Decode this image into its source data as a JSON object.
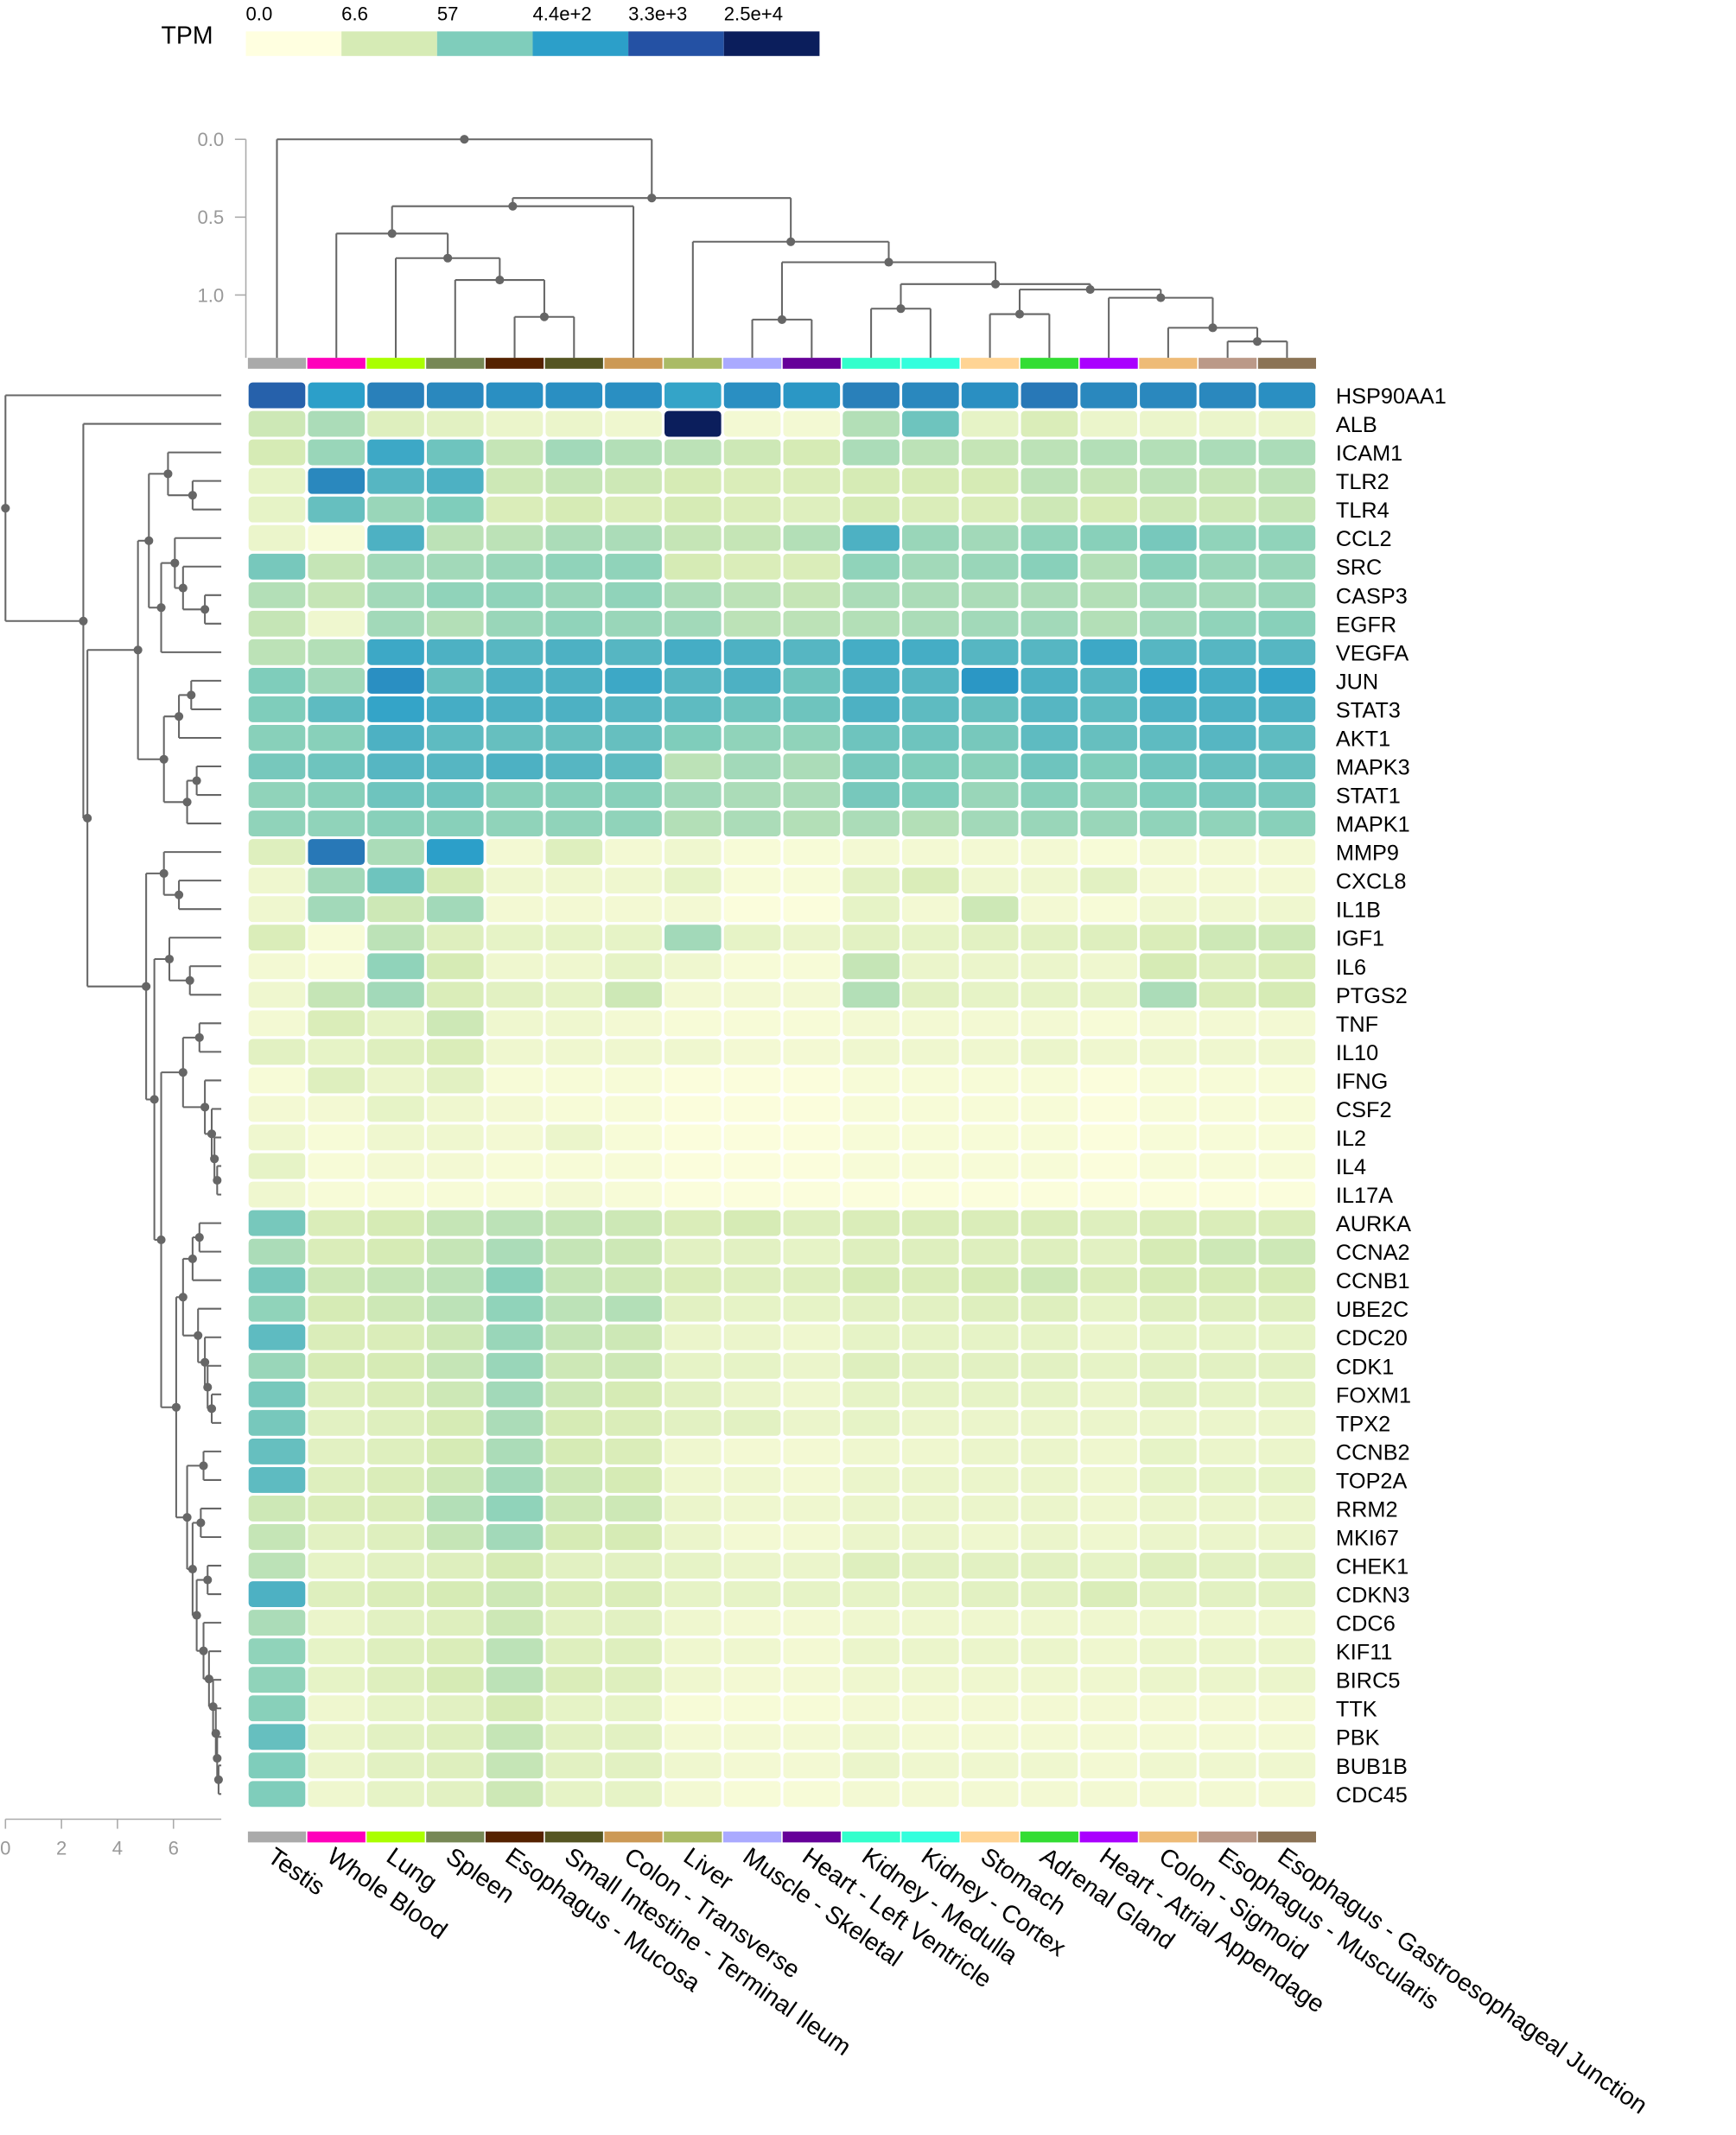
{
  "chart_data": {
    "type": "heatmap",
    "title": "",
    "legend": {
      "title": "TPM",
      "ticks": [
        "0.0",
        "6.6",
        "57",
        "4.4e+2",
        "3.3e+3",
        "2.5e+4"
      ],
      "colors": [
        "#ffffe0",
        "#d6ebb5",
        "#7fcdbb",
        "#2c9fc9",
        "#2451a4",
        "#0b1e5c"
      ]
    },
    "top_axis": {
      "ticks": [
        "0.0",
        "0.5",
        "1.0"
      ]
    },
    "left_axis": {
      "ticks": [
        "0",
        "2",
        "4",
        "6"
      ]
    },
    "tissues": [
      "Testis",
      "Whole Blood",
      "Lung",
      "Spleen",
      "Esophagus - Mucosa",
      "Small Intestine - Terminal Ileum",
      "Colon - Transverse",
      "Liver",
      "Muscle - Skeletal",
      "Heart - Left Ventricle",
      "Kidney - Medulla",
      "Kidney - Cortex",
      "Stomach",
      "Adrenal Gland",
      "Heart - Atrial Appendage",
      "Colon - Sigmoid",
      "Esophagus - Muscularis",
      "Esophagus - Gastroesophageal Junction"
    ],
    "tissue_colors": [
      "#aaaaaa",
      "#ff00bb",
      "#aaff00",
      "#778855",
      "#552200",
      "#555522",
      "#cc9955",
      "#aabb66",
      "#aaaaff",
      "#660099",
      "#33ffcc",
      "#33ffdd",
      "#ffd494",
      "#33dd33",
      "#aa00ff",
      "#eebb77",
      "#bb9988",
      "#8b7355"
    ],
    "genes": [
      "HSP90AA1",
      "ALB",
      "ICAM1",
      "TLR2",
      "TLR4",
      "CCL2",
      "SRC",
      "CASP3",
      "EGFR",
      "VEGFA",
      "JUN",
      "STAT3",
      "AKT1",
      "MAPK3",
      "STAT1",
      "MAPK1",
      "MMP9",
      "CXCL8",
      "IL1B",
      "IGF1",
      "IL6",
      "PTGS2",
      "TNF",
      "IL10",
      "IFNG",
      "CSF2",
      "IL2",
      "IL4",
      "IL17A",
      "AURKA",
      "CCNA2",
      "CCNB1",
      "UBE2C",
      "CDC20",
      "CDK1",
      "FOXM1",
      "TPX2",
      "CCNB2",
      "TOP2A",
      "RRM2",
      "MKI67",
      "CHEK1",
      "CDKN3",
      "CDC6",
      "KIF11",
      "BIRC5",
      "TTK",
      "PBK",
      "BUB1B",
      "CDC45"
    ],
    "values": [
      [
        3.8,
        3.0,
        3.4,
        3.3,
        3.2,
        3.2,
        3.2,
        2.9,
        3.2,
        3.1,
        3.4,
        3.3,
        3.2,
        3.5,
        3.3,
        3.3,
        3.3,
        3.2
      ],
      [
        1.1,
        1.5,
        0.8,
        0.7,
        0.5,
        0.5,
        0.4,
        5.0,
        0.3,
        0.3,
        1.4,
        2.2,
        0.6,
        0.9,
        0.5,
        0.5,
        0.5,
        0.5
      ],
      [
        1.0,
        1.7,
        2.8,
        2.2,
        1.2,
        1.6,
        1.4,
        1.3,
        1.1,
        1.0,
        1.5,
        1.3,
        1.2,
        1.3,
        1.4,
        1.4,
        1.5,
        1.5
      ],
      [
        0.6,
        3.3,
        2.5,
        2.6,
        1.1,
        1.2,
        1.1,
        1.0,
        0.9,
        0.9,
        1.0,
        1.0,
        1.0,
        1.3,
        1.2,
        1.3,
        1.2,
        1.3
      ],
      [
        0.6,
        2.3,
        1.7,
        2.0,
        0.9,
        1.0,
        0.9,
        1.0,
        0.9,
        0.8,
        1.0,
        0.9,
        0.9,
        1.1,
        1.0,
        1.1,
        1.1,
        1.2
      ],
      [
        0.5,
        0.2,
        2.6,
        1.3,
        1.3,
        1.5,
        1.5,
        1.2,
        1.2,
        1.4,
        2.6,
        1.7,
        1.6,
        1.8,
        1.9,
        2.1,
        1.8,
        1.8
      ],
      [
        2.1,
        1.2,
        1.6,
        1.6,
        1.7,
        1.8,
        1.8,
        1.0,
        0.9,
        0.9,
        1.8,
        1.6,
        1.7,
        1.9,
        1.4,
        1.9,
        1.7,
        1.7
      ],
      [
        1.4,
        1.2,
        1.6,
        1.8,
        1.8,
        1.7,
        1.8,
        1.5,
        1.3,
        1.2,
        1.5,
        1.5,
        1.5,
        1.5,
        1.4,
        1.6,
        1.6,
        1.7
      ],
      [
        1.2,
        0.4,
        1.6,
        1.4,
        1.7,
        1.8,
        1.7,
        1.6,
        1.3,
        1.3,
        1.4,
        1.5,
        1.6,
        1.6,
        1.4,
        1.6,
        1.8,
        1.9
      ],
      [
        1.3,
        1.4,
        2.8,
        2.6,
        2.5,
        2.6,
        2.5,
        2.7,
        2.6,
        2.5,
        2.7,
        2.7,
        2.5,
        2.5,
        2.8,
        2.5,
        2.5,
        2.5
      ],
      [
        2.0,
        1.6,
        3.2,
        2.3,
        2.6,
        2.6,
        2.8,
        2.5,
        2.6,
        2.2,
        2.6,
        2.5,
        3.1,
        2.6,
        2.5,
        2.9,
        2.7,
        2.9
      ],
      [
        2.0,
        2.4,
        2.9,
        2.7,
        2.6,
        2.6,
        2.5,
        2.4,
        2.2,
        2.2,
        2.6,
        2.4,
        2.3,
        2.5,
        2.4,
        2.6,
        2.6,
        2.6
      ],
      [
        1.9,
        1.9,
        2.6,
        2.4,
        2.3,
        2.3,
        2.3,
        2.0,
        1.8,
        1.8,
        2.2,
        2.2,
        2.1,
        2.4,
        2.3,
        2.4,
        2.5,
        2.4
      ],
      [
        2.1,
        2.2,
        2.5,
        2.5,
        2.6,
        2.5,
        2.4,
        1.3,
        1.6,
        1.5,
        2.1,
        2.0,
        1.9,
        2.2,
        2.0,
        2.2,
        2.3,
        2.3
      ],
      [
        1.8,
        1.9,
        2.2,
        2.2,
        1.9,
        1.9,
        1.9,
        1.6,
        1.5,
        1.5,
        2.1,
        2.0,
        1.7,
        1.9,
        1.8,
        2.0,
        2.1,
        2.1
      ],
      [
        1.8,
        1.8,
        1.9,
        1.9,
        1.8,
        1.8,
        1.8,
        1.4,
        1.5,
        1.4,
        1.5,
        1.4,
        1.6,
        1.7,
        1.7,
        1.8,
        1.8,
        1.9
      ],
      [
        0.8,
        3.5,
        1.5,
        3.0,
        0.3,
        0.8,
        0.3,
        0.4,
        0.2,
        0.2,
        0.3,
        0.3,
        0.3,
        0.3,
        0.2,
        0.3,
        0.3,
        0.3
      ],
      [
        0.4,
        1.6,
        2.2,
        1.0,
        0.4,
        0.4,
        0.4,
        0.6,
        0.2,
        0.2,
        0.7,
        0.9,
        0.4,
        0.4,
        0.7,
        0.3,
        0.3,
        0.3
      ],
      [
        0.4,
        1.6,
        1.1,
        1.6,
        0.3,
        0.3,
        0.3,
        0.3,
        0.1,
        0.1,
        0.6,
        0.3,
        1.1,
        0.3,
        0.2,
        0.4,
        0.4,
        0.4
      ],
      [
        0.9,
        0.2,
        1.3,
        0.8,
        0.6,
        0.6,
        0.6,
        1.6,
        0.6,
        0.5,
        0.7,
        0.6,
        0.7,
        0.7,
        0.8,
        0.9,
        1.1,
        1.1
      ],
      [
        0.3,
        0.2,
        1.8,
        1.0,
        0.4,
        0.4,
        0.6,
        0.4,
        0.2,
        0.2,
        1.2,
        0.5,
        0.5,
        0.5,
        0.4,
        1.0,
        0.8,
        0.9
      ],
      [
        0.4,
        1.2,
        1.6,
        0.9,
        0.7,
        0.6,
        1.1,
        0.3,
        0.3,
        0.3,
        1.4,
        0.7,
        0.6,
        0.6,
        0.6,
        1.5,
        0.9,
        1.0
      ],
      [
        0.3,
        0.9,
        0.6,
        1.1,
        0.4,
        0.4,
        0.3,
        0.2,
        0.2,
        0.2,
        0.3,
        0.3,
        0.3,
        0.3,
        0.2,
        0.3,
        0.3,
        0.3
      ],
      [
        0.7,
        0.6,
        0.8,
        0.9,
        0.4,
        0.4,
        0.4,
        0.4,
        0.3,
        0.3,
        0.4,
        0.4,
        0.4,
        0.5,
        0.4,
        0.4,
        0.4,
        0.4
      ],
      [
        0.2,
        0.8,
        0.5,
        0.7,
        0.2,
        0.2,
        0.2,
        0.1,
        0.1,
        0.1,
        0.2,
        0.2,
        0.2,
        0.2,
        0.1,
        0.2,
        0.2,
        0.2
      ],
      [
        0.3,
        0.3,
        0.6,
        0.4,
        0.3,
        0.2,
        0.2,
        0.1,
        0.1,
        0.1,
        0.2,
        0.2,
        0.2,
        0.2,
        0.1,
        0.2,
        0.2,
        0.2
      ],
      [
        0.4,
        0.2,
        0.4,
        0.4,
        0.3,
        0.5,
        0.2,
        0.1,
        0.1,
        0.1,
        0.2,
        0.2,
        0.2,
        0.2,
        0.1,
        0.2,
        0.2,
        0.2
      ],
      [
        0.6,
        0.2,
        0.3,
        0.3,
        0.2,
        0.2,
        0.2,
        0.1,
        0.1,
        0.1,
        0.2,
        0.2,
        0.2,
        0.2,
        0.1,
        0.2,
        0.2,
        0.2
      ],
      [
        0.4,
        0.2,
        0.2,
        0.2,
        0.2,
        0.3,
        0.2,
        0.1,
        0.1,
        0.1,
        0.1,
        0.1,
        0.1,
        0.1,
        0.1,
        0.1,
        0.1,
        0.1
      ],
      [
        2.1,
        0.9,
        1.0,
        1.2,
        1.3,
        1.2,
        1.1,
        0.9,
        1.0,
        0.8,
        0.9,
        0.9,
        0.9,
        0.9,
        0.8,
        0.9,
        0.9,
        0.9
      ],
      [
        1.5,
        0.9,
        1.0,
        1.2,
        1.5,
        1.2,
        1.1,
        0.7,
        0.7,
        0.6,
        0.8,
        0.8,
        0.8,
        0.8,
        0.7,
        1.0,
        1.1,
        1.1
      ],
      [
        2.1,
        1.1,
        1.2,
        1.3,
        1.9,
        1.2,
        1.1,
        0.9,
        0.8,
        0.8,
        1.0,
        0.9,
        1.0,
        1.1,
        0.9,
        1.0,
        1.0,
        1.0
      ],
      [
        1.8,
        1.0,
        1.1,
        1.3,
        1.8,
        1.3,
        1.4,
        0.7,
        0.6,
        0.6,
        0.7,
        0.7,
        0.8,
        0.8,
        0.6,
        0.8,
        0.8,
        0.8
      ],
      [
        2.4,
        0.9,
        0.9,
        1.1,
        1.7,
        1.2,
        1.1,
        0.5,
        0.5,
        0.4,
        0.6,
        0.6,
        0.6,
        0.6,
        0.5,
        0.6,
        0.6,
        0.6
      ],
      [
        1.7,
        1.0,
        1.0,
        1.2,
        1.7,
        1.1,
        1.1,
        0.6,
        0.6,
        0.5,
        0.8,
        0.7,
        0.7,
        0.7,
        0.6,
        0.7,
        0.7,
        0.7
      ],
      [
        2.1,
        0.8,
        0.9,
        1.1,
        1.6,
        1.1,
        1.0,
        0.7,
        0.5,
        0.4,
        0.6,
        0.6,
        0.6,
        0.6,
        0.5,
        0.7,
        0.6,
        0.6
      ],
      [
        2.1,
        0.7,
        0.8,
        1.0,
        1.5,
        1.0,
        0.9,
        0.7,
        0.7,
        0.5,
        0.6,
        0.5,
        0.5,
        0.5,
        0.5,
        0.5,
        0.5,
        0.5
      ],
      [
        2.3,
        0.7,
        0.8,
        1.0,
        1.5,
        1.0,
        0.9,
        0.4,
        0.3,
        0.3,
        0.4,
        0.4,
        0.5,
        0.5,
        0.4,
        0.6,
        0.5,
        0.5
      ],
      [
        2.4,
        0.8,
        0.9,
        1.1,
        1.6,
        1.1,
        1.0,
        0.4,
        0.4,
        0.3,
        0.5,
        0.5,
        0.5,
        0.5,
        0.4,
        0.6,
        0.6,
        0.6
      ],
      [
        1.1,
        0.9,
        0.9,
        1.4,
        1.8,
        1.1,
        1.1,
        0.5,
        0.4,
        0.4,
        0.5,
        0.5,
        0.5,
        0.5,
        0.4,
        0.5,
        0.5,
        0.5
      ],
      [
        1.2,
        0.7,
        0.8,
        1.2,
        1.6,
        1.0,
        1.0,
        0.5,
        0.3,
        0.3,
        0.5,
        0.5,
        0.4,
        0.5,
        0.4,
        0.5,
        0.5,
        0.5
      ],
      [
        1.3,
        0.6,
        0.7,
        0.8,
        1.0,
        0.7,
        0.7,
        0.6,
        0.5,
        0.5,
        0.8,
        0.7,
        0.7,
        0.7,
        0.6,
        0.8,
        0.7,
        0.7
      ],
      [
        2.6,
        0.8,
        0.9,
        1.0,
        1.1,
        0.9,
        0.9,
        0.6,
        0.6,
        0.6,
        0.6,
        0.6,
        0.7,
        0.7,
        0.9,
        0.7,
        0.7,
        0.7
      ],
      [
        1.5,
        0.5,
        0.7,
        0.8,
        1.1,
        0.7,
        0.7,
        0.4,
        0.3,
        0.3,
        0.4,
        0.4,
        0.4,
        0.4,
        0.4,
        0.4,
        0.4,
        0.4
      ],
      [
        1.8,
        0.6,
        0.8,
        0.9,
        1.3,
        0.8,
        0.8,
        0.4,
        0.4,
        0.3,
        0.5,
        0.5,
        0.5,
        0.5,
        0.4,
        0.5,
        0.5,
        0.5
      ],
      [
        1.8,
        0.6,
        0.8,
        1.0,
        1.3,
        0.9,
        0.8,
        0.4,
        0.3,
        0.3,
        0.4,
        0.4,
        0.4,
        0.4,
        0.4,
        0.5,
        0.5,
        0.5
      ],
      [
        1.9,
        0.4,
        0.6,
        0.7,
        1.0,
        0.6,
        0.6,
        0.2,
        0.2,
        0.2,
        0.3,
        0.3,
        0.3,
        0.3,
        0.3,
        0.3,
        0.3,
        0.3
      ],
      [
        2.3,
        0.5,
        0.7,
        0.8,
        1.2,
        0.7,
        0.7,
        0.3,
        0.3,
        0.3,
        0.4,
        0.3,
        0.3,
        0.3,
        0.3,
        0.3,
        0.3,
        0.3
      ],
      [
        2.0,
        0.5,
        0.7,
        0.8,
        1.2,
        0.7,
        0.7,
        0.4,
        0.3,
        0.3,
        0.5,
        0.4,
        0.4,
        0.4,
        0.3,
        0.4,
        0.4,
        0.4
      ],
      [
        2.0,
        0.4,
        0.6,
        0.7,
        1.1,
        0.6,
        0.6,
        0.3,
        0.2,
        0.2,
        0.3,
        0.3,
        0.3,
        0.3,
        0.3,
        0.3,
        0.3,
        0.3
      ]
    ]
  }
}
